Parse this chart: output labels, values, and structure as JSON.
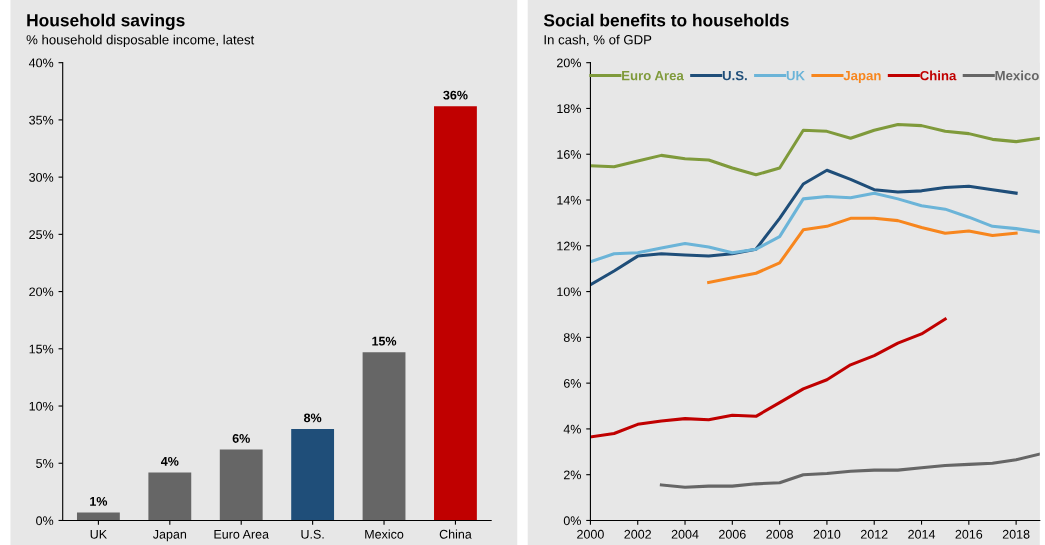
{
  "chart_data": [
    {
      "type": "bar",
      "title": "Household savings",
      "subtitle": "% household disposable income, latest",
      "categories": [
        "UK",
        "Japan",
        "Euro Area",
        "U.S.",
        "Mexico",
        "China"
      ],
      "values": [
        0.7,
        4.2,
        6.2,
        8.0,
        14.7,
        36.2
      ],
      "colors": [
        "#666666",
        "#666666",
        "#666666",
        "#1f4e79",
        "#666666",
        "#c00000"
      ],
      "value_labels": [
        "1%",
        "4%",
        "6%",
        "8%",
        "15%",
        "36%"
      ],
      "ylim": [
        0,
        40
      ],
      "yticks": [
        {
          "value": 0,
          "label": "0%"
        },
        {
          "value": 5,
          "label": "5%"
        },
        {
          "value": 10,
          "label": "10%"
        },
        {
          "value": 15,
          "label": "15%"
        },
        {
          "value": 20,
          "label": "20%"
        },
        {
          "value": 25,
          "label": "25%"
        },
        {
          "value": 30,
          "label": "30%"
        },
        {
          "value": 35,
          "label": "35%"
        },
        {
          "value": 40,
          "label": "40%"
        }
      ],
      "grid": false
    },
    {
      "type": "line",
      "title": "Social benefits to households",
      "subtitle": "In cash, % of GDP",
      "legend": "top",
      "grid": false,
      "series": [
        {
          "name": "Euro Area",
          "color": "#7f9a3b",
          "x": [
            2000,
            2001,
            2002,
            2003,
            2004,
            2005,
            2006,
            2007,
            2008,
            2009,
            2010,
            2011,
            2012,
            2013,
            2014,
            2015,
            2016,
            2017,
            2018,
            2019
          ],
          "values": [
            15.5,
            15.45,
            15.7,
            15.95,
            15.8,
            15.75,
            15.4,
            15.1,
            15.4,
            17.05,
            17.0,
            16.7,
            17.05,
            17.3,
            17.25,
            17.0,
            16.9,
            16.65,
            16.55,
            16.7
          ]
        },
        {
          "name": "U.S.",
          "color": "#1f4e79",
          "x": [
            2000,
            2001,
            2002,
            2003,
            2004,
            2005,
            2006,
            2007,
            2008,
            2009,
            2010,
            2011,
            2012,
            2013,
            2014,
            2015,
            2016,
            2017,
            2018
          ],
          "values": [
            10.3,
            10.9,
            11.55,
            11.65,
            11.6,
            11.55,
            11.65,
            11.85,
            13.2,
            14.7,
            15.3,
            14.9,
            14.45,
            14.35,
            14.4,
            14.55,
            14.6,
            14.45,
            14.3
          ]
        },
        {
          "name": "UK",
          "color": "#6bb4d8",
          "x": [
            2000,
            2001,
            2002,
            2003,
            2004,
            2005,
            2006,
            2007,
            2008,
            2009,
            2010,
            2011,
            2012,
            2013,
            2014,
            2015,
            2016,
            2017,
            2018,
            2019
          ],
          "values": [
            11.3,
            11.65,
            11.7,
            11.9,
            12.1,
            11.95,
            11.7,
            11.85,
            12.4,
            14.05,
            14.15,
            14.1,
            14.3,
            14.05,
            13.75,
            13.6,
            13.25,
            12.85,
            12.75,
            12.6
          ]
        },
        {
          "name": "Japan",
          "color": "#f7861e",
          "x": [
            2005,
            2006,
            2007,
            2008,
            2009,
            2010,
            2011,
            2012,
            2013,
            2014,
            2015,
            2016,
            2017,
            2018
          ],
          "values": [
            10.4,
            10.6,
            10.8,
            11.25,
            12.7,
            12.85,
            13.2,
            13.2,
            13.1,
            12.8,
            12.55,
            12.65,
            12.45,
            12.55
          ]
        },
        {
          "name": "China",
          "color": "#c00000",
          "x": [
            2000,
            2001,
            2002,
            2003,
            2004,
            2005,
            2006,
            2007,
            2008,
            2009,
            2010,
            2011,
            2012,
            2013,
            2014,
            2015
          ],
          "values": [
            3.65,
            3.8,
            4.2,
            4.35,
            4.45,
            4.4,
            4.6,
            4.55,
            5.15,
            5.75,
            6.15,
            6.8,
            7.2,
            7.75,
            8.15,
            8.8
          ]
        },
        {
          "name": "Mexico",
          "color": "#666666",
          "x": [
            2003,
            2004,
            2005,
            2006,
            2007,
            2008,
            2009,
            2010,
            2011,
            2012,
            2013,
            2014,
            2015,
            2016,
            2017,
            2018,
            2019
          ],
          "values": [
            1.55,
            1.45,
            1.5,
            1.5,
            1.6,
            1.65,
            2.0,
            2.05,
            2.15,
            2.2,
            2.2,
            2.3,
            2.4,
            2.45,
            2.5,
            2.65,
            2.9
          ]
        }
      ],
      "xlim": [
        2000,
        2019
      ],
      "xticks": [
        2000,
        2002,
        2004,
        2006,
        2008,
        2010,
        2012,
        2014,
        2016,
        2018
      ],
      "ylim": [
        0,
        20
      ],
      "yticks": [
        {
          "value": 0,
          "label": "0%"
        },
        {
          "value": 2,
          "label": "2%"
        },
        {
          "value": 4,
          "label": "4%"
        },
        {
          "value": 6,
          "label": "6%"
        },
        {
          "value": 8,
          "label": "8%"
        },
        {
          "value": 10,
          "label": "10%"
        },
        {
          "value": 12,
          "label": "12%"
        },
        {
          "value": 14,
          "label": "14%"
        },
        {
          "value": 16,
          "label": "16%"
        },
        {
          "value": 18,
          "label": "18%"
        },
        {
          "value": 20,
          "label": "20%"
        }
      ]
    }
  ]
}
